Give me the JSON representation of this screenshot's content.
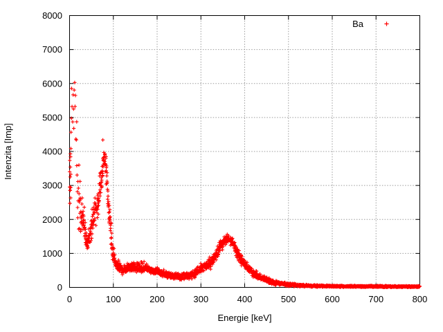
{
  "figure": {
    "background": "#ffffff",
    "border_color": "#000000",
    "grid_color": "#9b9b9b",
    "text_color": "#000000"
  },
  "legend": {
    "label": "Ba",
    "marker": "plus-icon",
    "position": "top-right"
  },
  "chart_data": {
    "type": "scatter",
    "title": "",
    "xlabel": "Energie [keV]",
    "ylabel": "Intenzita [Imp]",
    "xlim": [
      0,
      800
    ],
    "ylim": [
      0,
      8000
    ],
    "x_ticks": [
      0,
      100,
      200,
      300,
      400,
      500,
      600,
      700,
      800
    ],
    "y_ticks": [
      0,
      1000,
      2000,
      3000,
      4000,
      5000,
      6000,
      7000,
      8000
    ],
    "grid": true,
    "legend_position": "top-right",
    "series": [
      {
        "name": "Ba",
        "marker": "+",
        "color": "#ff0000",
        "envelope_note": "anchor points [energy_keV, mean_counts, sigma_counts, points_per_keV] describing the measured spectrum band; peaks: ~31 keV X-ray shoulder, 81 keV line (~3890 max), 302 keV shoulder (~650), 356 keV line (~1480), low-energy noise up to ~6930",
        "envelope": [
          [
            0,
            3050,
            420,
            5
          ],
          [
            3,
            3050,
            450,
            5
          ],
          [
            3.5,
            5600,
            750,
            1.0
          ],
          [
            15,
            5400,
            800,
            1.0
          ],
          [
            17,
            3200,
            600,
            1.6
          ],
          [
            22,
            2500,
            420,
            2.2
          ],
          [
            28,
            1950,
            300,
            3
          ],
          [
            32,
            2000,
            260,
            3
          ],
          [
            38,
            1350,
            150,
            3
          ],
          [
            42,
            1300,
            140,
            3
          ],
          [
            50,
            1800,
            190,
            3
          ],
          [
            57,
            2250,
            210,
            3
          ],
          [
            63,
            2400,
            230,
            3
          ],
          [
            68,
            2800,
            260,
            3
          ],
          [
            73,
            3300,
            260,
            3
          ],
          [
            78,
            3750,
            95,
            3
          ],
          [
            81,
            3760,
            95,
            3
          ],
          [
            84,
            3400,
            250,
            3
          ],
          [
            88,
            2500,
            280,
            3
          ],
          [
            93,
            1700,
            230,
            3
          ],
          [
            98,
            1100,
            160,
            3
          ],
          [
            103,
            800,
            110,
            3
          ],
          [
            108,
            680,
            85,
            3
          ],
          [
            115,
            580,
            70,
            3
          ],
          [
            122,
            510,
            62,
            3
          ],
          [
            130,
            555,
            68,
            3
          ],
          [
            140,
            590,
            70,
            3
          ],
          [
            150,
            620,
            70,
            3
          ],
          [
            158,
            580,
            66,
            3
          ],
          [
            168,
            610,
            70,
            3
          ],
          [
            178,
            565,
            65,
            3
          ],
          [
            192,
            490,
            58,
            3
          ],
          [
            212,
            410,
            52,
            3
          ],
          [
            232,
            355,
            48,
            3
          ],
          [
            252,
            330,
            46,
            3
          ],
          [
            272,
            340,
            47,
            3
          ],
          [
            288,
            405,
            52,
            3
          ],
          [
            298,
            540,
            62,
            3
          ],
          [
            306,
            640,
            68,
            3
          ],
          [
            314,
            635,
            68,
            3
          ],
          [
            322,
            700,
            72,
            3
          ],
          [
            332,
            880,
            80,
            3
          ],
          [
            342,
            1130,
            85,
            3
          ],
          [
            352,
            1340,
            75,
            3
          ],
          [
            358,
            1420,
            60,
            3
          ],
          [
            365,
            1430,
            60,
            3
          ],
          [
            372,
            1330,
            75,
            3
          ],
          [
            380,
            1130,
            85,
            3
          ],
          [
            388,
            920,
            80,
            3
          ],
          [
            396,
            740,
            72,
            3
          ],
          [
            406,
            580,
            64,
            3
          ],
          [
            418,
            440,
            55,
            3
          ],
          [
            430,
            340,
            48,
            3
          ],
          [
            442,
            260,
            42,
            3
          ],
          [
            455,
            195,
            36,
            3
          ],
          [
            470,
            140,
            30,
            3
          ],
          [
            485,
            105,
            26,
            3
          ],
          [
            500,
            82,
            22,
            3
          ],
          [
            520,
            62,
            18,
            3
          ],
          [
            545,
            48,
            15,
            3
          ],
          [
            575,
            40,
            13,
            3
          ],
          [
            610,
            34,
            12,
            3
          ],
          [
            650,
            30,
            11,
            3
          ],
          [
            700,
            27,
            11,
            3
          ],
          [
            750,
            25,
            10,
            3
          ],
          [
            800,
            24,
            10,
            3
          ]
        ],
        "outliers": [
          [
            76,
            4340
          ],
          [
            320,
            890
          ]
        ]
      }
    ]
  }
}
